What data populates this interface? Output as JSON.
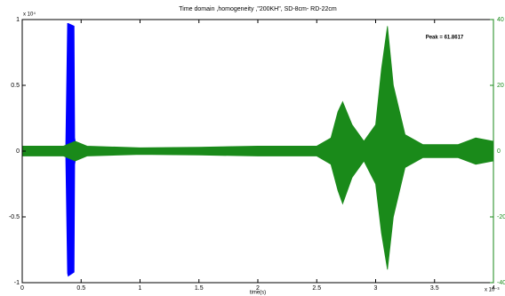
{
  "chart_data": {
    "type": "envelope",
    "title": "Time domain ,homogeneity ,\"200KH\", SD-8cm- RD-22cm",
    "xlabel": "time(s)",
    "x_exponent": "x 10⁻³",
    "y_exponent": "x 10⁴",
    "annotation": "Peak = 61.8617",
    "xlim": [
      0,
      4
    ],
    "xticks": [
      0,
      0.5,
      1,
      1.5,
      2,
      2.5,
      3,
      3.5,
      4
    ],
    "ylim": [
      -1,
      1
    ],
    "yticks": [
      -1,
      -0.5,
      0,
      0.5,
      1
    ],
    "y2lim": [
      -40,
      40
    ],
    "y2ticks": [
      -40,
      -20,
      0,
      20,
      40
    ],
    "y2color": "#1a8a1a",
    "series": [
      {
        "color": "#0000ff",
        "x": [
          0.37,
          0.385,
          0.39,
          0.44,
          0.445,
          0.46
        ],
        "values": [
          0.05,
          0.97,
          0.97,
          0.95,
          0.1,
          0.02
        ],
        "lower": [
          -0.05,
          -0.93,
          -0.95,
          -0.92,
          -0.1,
          -0.02
        ]
      },
      {
        "color": "#1a8a1a",
        "axis": "y2",
        "x": [
          0,
          0.35,
          0.45,
          0.55,
          1.0,
          1.5,
          2.0,
          2.5,
          2.62,
          2.68,
          2.72,
          2.8,
          2.9,
          3.0,
          3.05,
          3.1,
          3.15,
          3.25,
          3.4,
          3.7,
          3.85,
          4.0
        ],
        "values": [
          1.5,
          1.5,
          3,
          1.5,
          1,
          1.2,
          1.5,
          1.5,
          4,
          12,
          15,
          8,
          3,
          8,
          25,
          38,
          20,
          5,
          2,
          2,
          4,
          3
        ],
        "lower": [
          -1.5,
          -1.5,
          -3,
          -1.5,
          -1,
          -1.2,
          -1.5,
          -1.5,
          -4,
          -12,
          -16,
          -8,
          -3,
          -10,
          -25,
          -36,
          -20,
          -5,
          -2,
          -2,
          -4,
          -3
        ]
      }
    ]
  }
}
